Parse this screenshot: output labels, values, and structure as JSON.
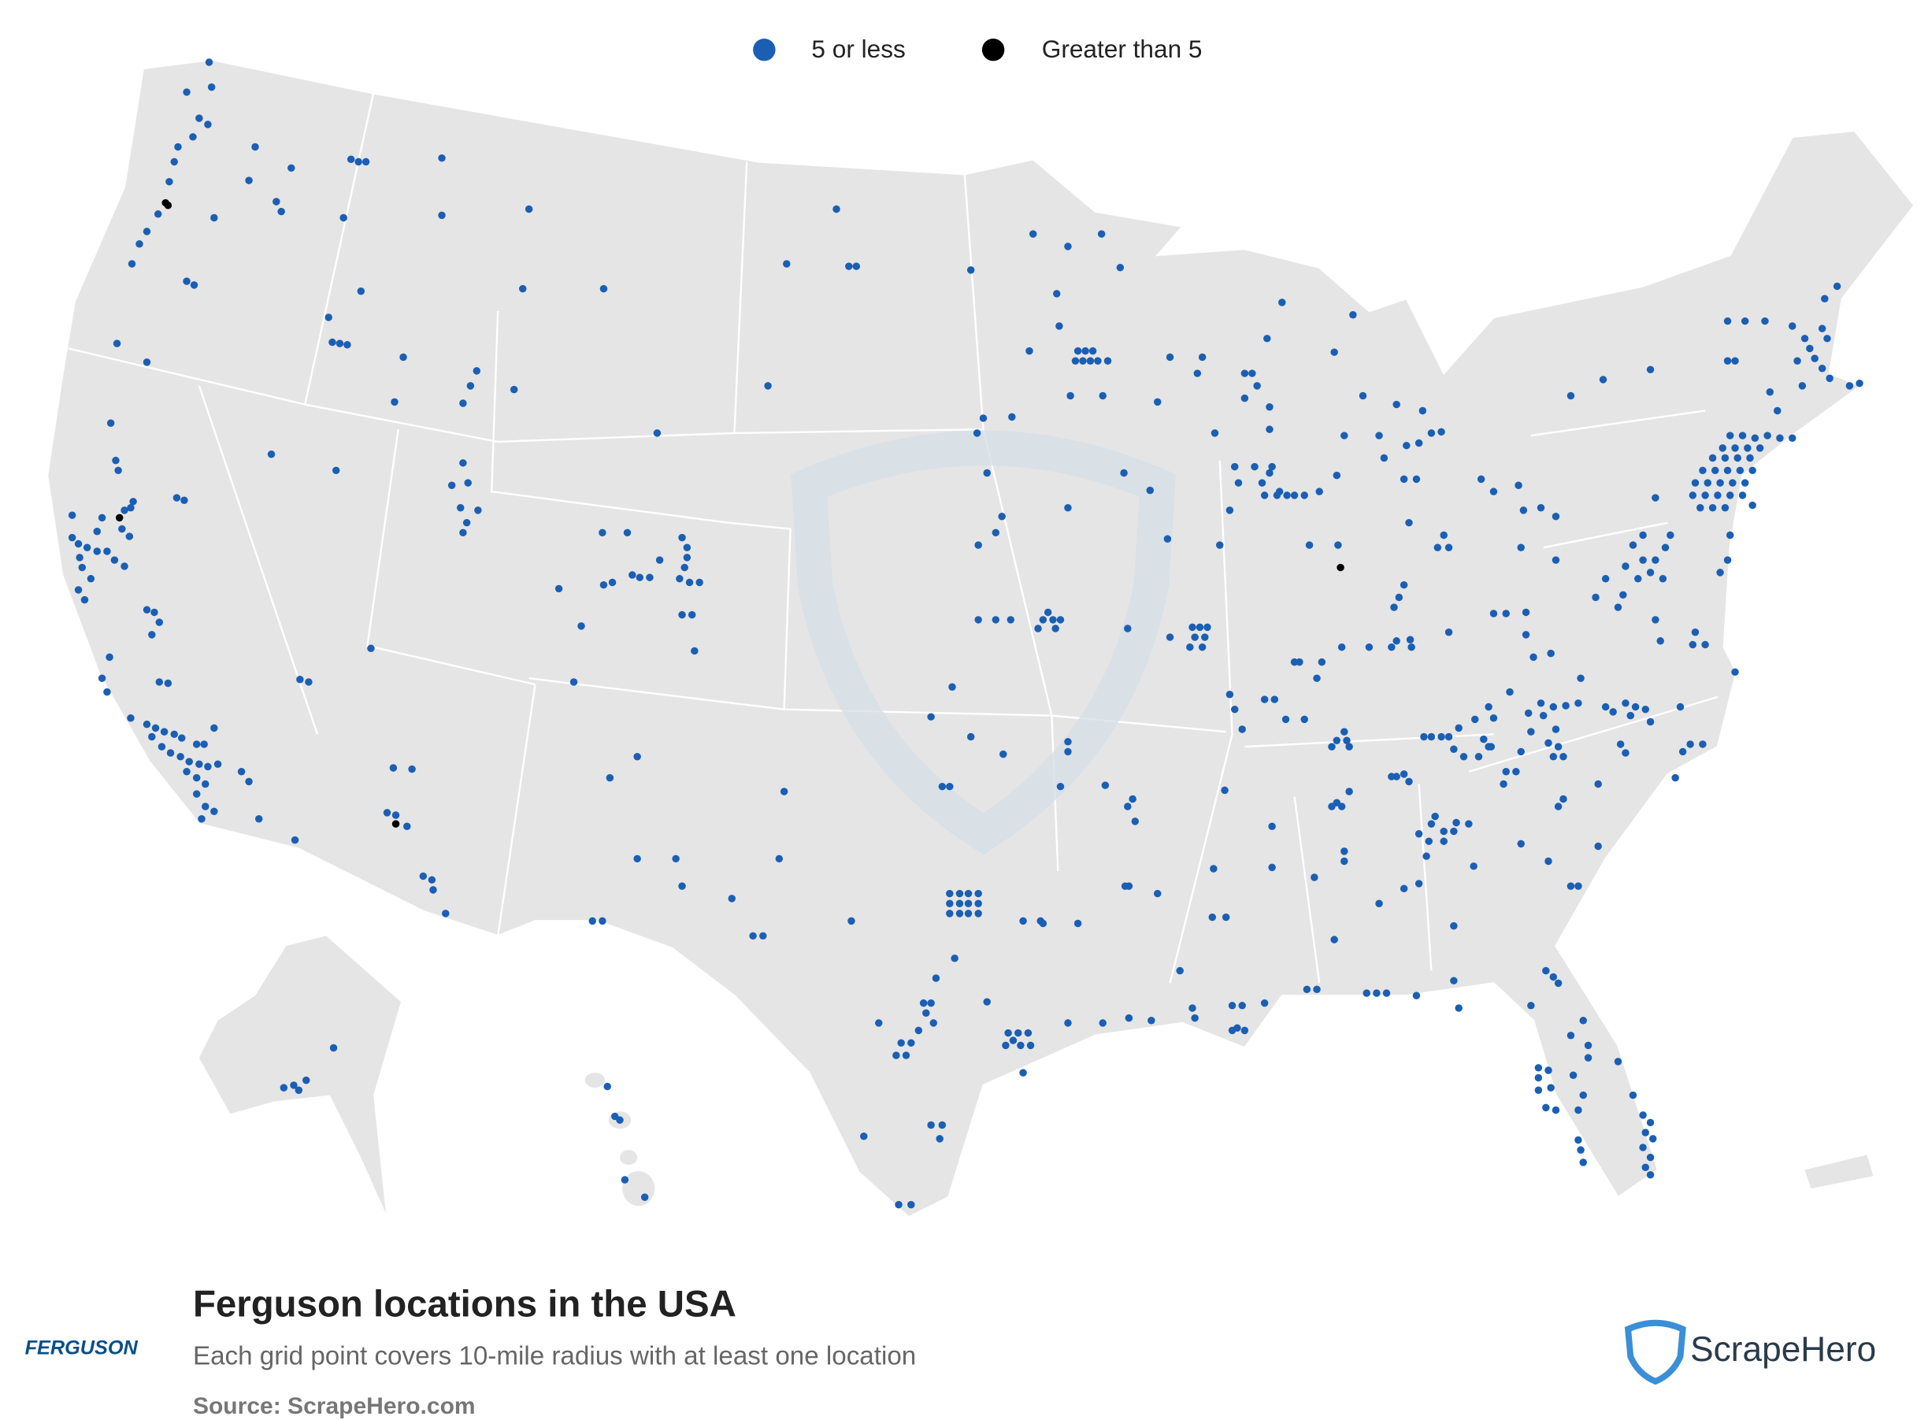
{
  "legend": {
    "items": [
      {
        "label": "5 or less",
        "color": "#1a5fb4"
      },
      {
        "label": "Greater than 5",
        "color": "#000000"
      }
    ]
  },
  "footer": {
    "title": "Ferguson locations in the USA",
    "subtitle": "Each grid point covers 10-mile radius with at least one location",
    "source": "Source: ScrapeHero.com",
    "brand": "FERGUSON",
    "logo": "ScrapeHero"
  }
}
